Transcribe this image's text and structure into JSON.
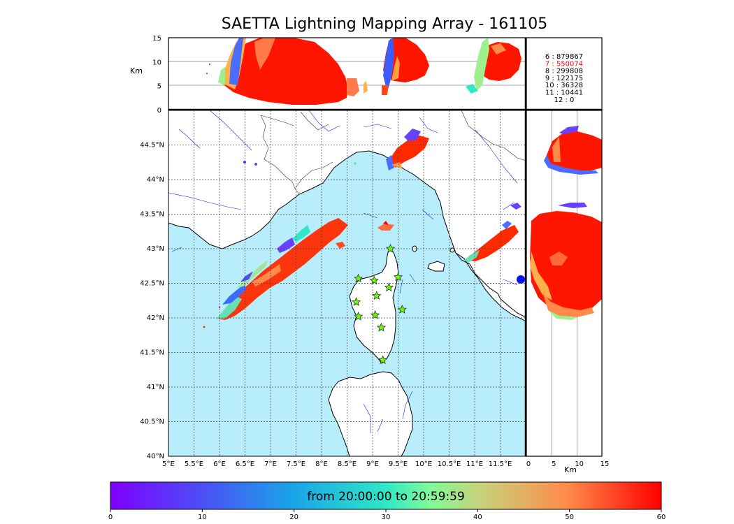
{
  "chart_data": {
    "type": "scatter",
    "title": "SAETTA Lightning Mapping Array - 161105",
    "main_map": {
      "x_ticks": [
        "5°E",
        "5.5°E",
        "6°E",
        "6.5°E",
        "7°E",
        "7.5°E",
        "8°E",
        "8.5°E",
        "9°E",
        "9.5°E",
        "10°E",
        "10.5°E",
        "11°E",
        "11.5°E"
      ],
      "y_ticks": [
        "40°N",
        "40.5°N",
        "41°N",
        "41.5°N",
        "42°N",
        "42.5°N",
        "43°N",
        "43.5°N",
        "44°N",
        "44.5°N"
      ],
      "lon_range": [
        5.0,
        12.0
      ],
      "lat_range": [
        40.0,
        45.0
      ],
      "stations_lonlat": [
        [
          9.35,
          43.0
        ],
        [
          8.72,
          42.57
        ],
        [
          9.03,
          42.54
        ],
        [
          9.5,
          42.59
        ],
        [
          9.08,
          42.32
        ],
        [
          9.32,
          42.44
        ],
        [
          8.68,
          42.23
        ],
        [
          8.72,
          42.02
        ],
        [
          9.05,
          42.04
        ],
        [
          9.58,
          42.12
        ],
        [
          9.17,
          41.86
        ],
        [
          9.2,
          41.39
        ]
      ]
    },
    "top_panel": {
      "ylabel": "Km",
      "y_ticks": [
        "0",
        "5",
        "10",
        "15"
      ],
      "ylim": [
        0,
        15
      ]
    },
    "right_panel": {
      "xlabel": "Km",
      "x_ticks": [
        "0",
        "5",
        "10",
        "15"
      ],
      "xlim": [
        0,
        15
      ]
    },
    "station_counts": [
      {
        "label": "6  :   879867",
        "color": "#000000"
      },
      {
        "label": "7  :   550074",
        "color": "#ff0000"
      },
      {
        "label": "8  :   299808",
        "color": "#000000"
      },
      {
        "label": "9  :   122175",
        "color": "#000000"
      },
      {
        "label": "10  :    36328",
        "color": "#000000"
      },
      {
        "label": "11  :    10441",
        "color": "#000000"
      },
      {
        "label": "12  :        0",
        "color": "#000000"
      }
    ],
    "colorbar": {
      "caption": "from 20:00:00 to 20:59:59",
      "ticks": [
        "0",
        "10",
        "20",
        "30",
        "40",
        "50",
        "60"
      ],
      "range": [
        0,
        60
      ]
    }
  }
}
